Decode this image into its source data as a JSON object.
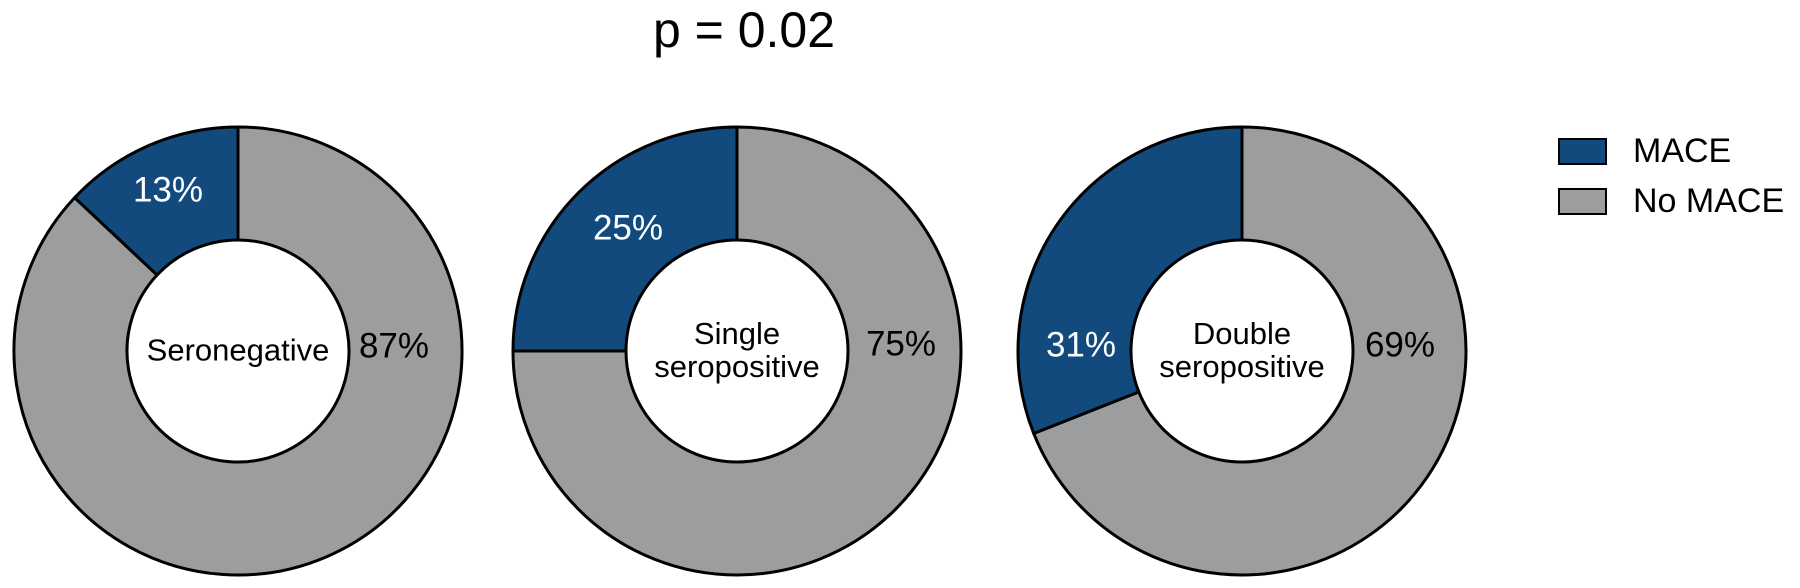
{
  "title": "p = 0.02",
  "legend": {
    "items": [
      {
        "label": "MACE",
        "color": "#124A7E"
      },
      {
        "label": "No MACE",
        "color": "#9B9D9F"
      }
    ]
  },
  "chart_data": {
    "type": "pie",
    "subtype": "donut",
    "title": "p = 0.02",
    "legend_position": "right",
    "series": [
      "MACE",
      "No MACE"
    ],
    "colors": {
      "MACE": "#124A7E",
      "No MACE": "#9B9D9F"
    },
    "outline_color": "#000000",
    "charts": [
      {
        "group": "Seronegative",
        "center_label_lines": [
          "Seronegative"
        ],
        "segments": [
          {
            "name": "MACE",
            "value": 13,
            "label": "13%"
          },
          {
            "name": "No MACE",
            "value": 87,
            "label": "87%"
          }
        ]
      },
      {
        "group": "Single seropositive",
        "center_label_lines": [
          "Single",
          "seropositive"
        ],
        "segments": [
          {
            "name": "MACE",
            "value": 25,
            "label": "25%"
          },
          {
            "name": "No MACE",
            "value": 75,
            "label": "75%"
          }
        ]
      },
      {
        "group": "Double seropositive",
        "center_label_lines": [
          "Double",
          "seropositive"
        ],
        "segments": [
          {
            "name": "MACE",
            "value": 31,
            "label": "31%"
          },
          {
            "name": "No MACE",
            "value": 69,
            "label": "69%"
          }
        ]
      }
    ]
  }
}
